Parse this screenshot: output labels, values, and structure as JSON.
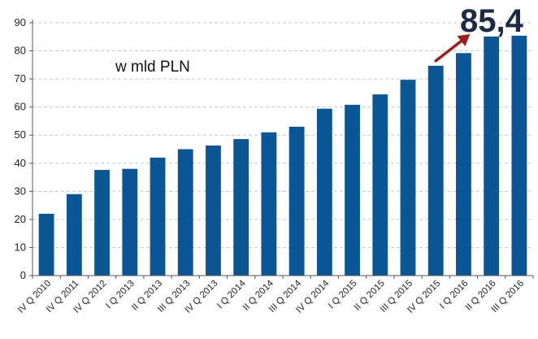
{
  "chart_data": {
    "type": "bar",
    "title": "",
    "xlabel": "",
    "ylabel": "",
    "unit_note": "w mld PLN",
    "highlight_value": "85,4",
    "ylim": [
      0,
      90
    ],
    "yticks": [
      0,
      10,
      20,
      30,
      40,
      50,
      60,
      70,
      80,
      90
    ],
    "grid": true,
    "categories": [
      "IV Q 2010",
      "IV Q 2011",
      "IV Q 2012",
      "I Q 2013",
      "II Q 2013",
      "III Q 2013",
      "IV Q 2013",
      "I Q 2014",
      "II Q 2014",
      "III Q 2014",
      "IV Q 2014",
      "I Q 2015",
      "II Q 2015",
      "III Q 2015",
      "IV Q 2015",
      "I Q 2016",
      "II Q 2016",
      "III Q 2016"
    ],
    "values": [
      22,
      29,
      37.6,
      38,
      42,
      45,
      46.3,
      48.6,
      51,
      53,
      59.4,
      60.8,
      64.5,
      69.7,
      74.7,
      79.2,
      85.1,
      85.4
    ],
    "bar_color": "#0b5796",
    "arrow_color": "#a01a1a"
  }
}
